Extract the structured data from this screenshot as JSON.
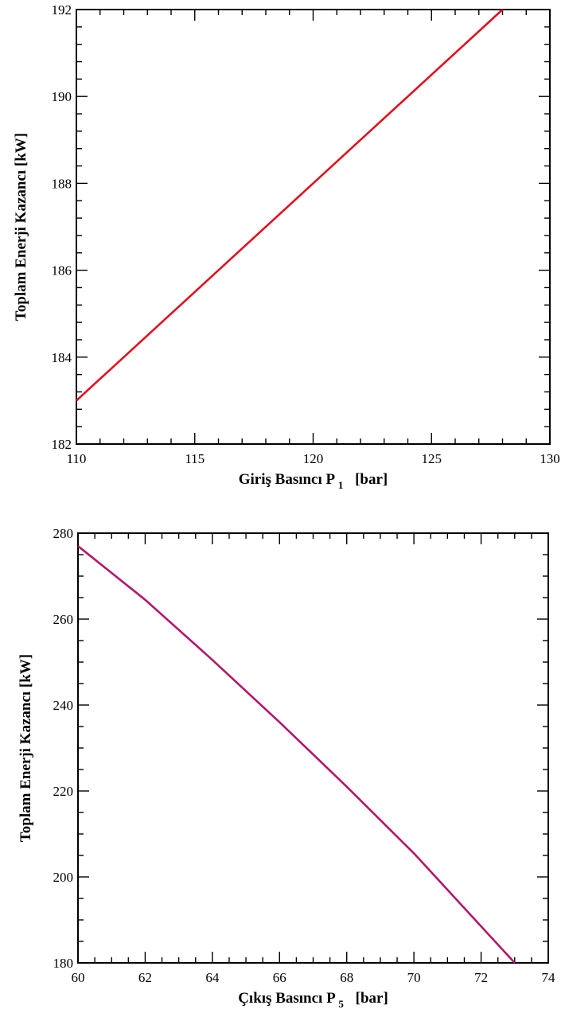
{
  "chart_data": [
    {
      "type": "line",
      "xlabel": "Giriş Basıncı P",
      "xlabel_sub": "1",
      "xlabel_unit": "[bar]",
      "ylabel": "Toplam Enerji Kazancı [kW]",
      "xlim": [
        110,
        130
      ],
      "ylim": [
        182,
        192
      ],
      "xticks": [
        "110",
        "115",
        "120",
        "125",
        "130"
      ],
      "yticks": [
        "182",
        "184",
        "186",
        "188",
        "190",
        "192"
      ],
      "series": [
        {
          "color": "#e0101e",
          "x": [
            110,
            128
          ],
          "y": [
            183,
            192
          ]
        }
      ],
      "grid": false
    },
    {
      "type": "line",
      "xlabel": "Çıkış Basıncı P",
      "xlabel_sub": "5",
      "xlabel_unit": "[bar]",
      "ylabel": "Toplam Enerji Kazancı [kW]",
      "xlim": [
        60,
        74
      ],
      "ylim": [
        180,
        280
      ],
      "xticks": [
        "60",
        "62",
        "64",
        "66",
        "68",
        "70",
        "72",
        "74"
      ],
      "yticks": [
        "180",
        "200",
        "220",
        "240",
        "260",
        "280"
      ],
      "series": [
        {
          "color": "#b3156a",
          "x": [
            60,
            62,
            64,
            66,
            68,
            70,
            72,
            73
          ],
          "y": [
            277,
            264.5,
            250.5,
            236,
            221,
            205.5,
            188.5,
            180
          ]
        }
      ],
      "grid": false
    }
  ]
}
